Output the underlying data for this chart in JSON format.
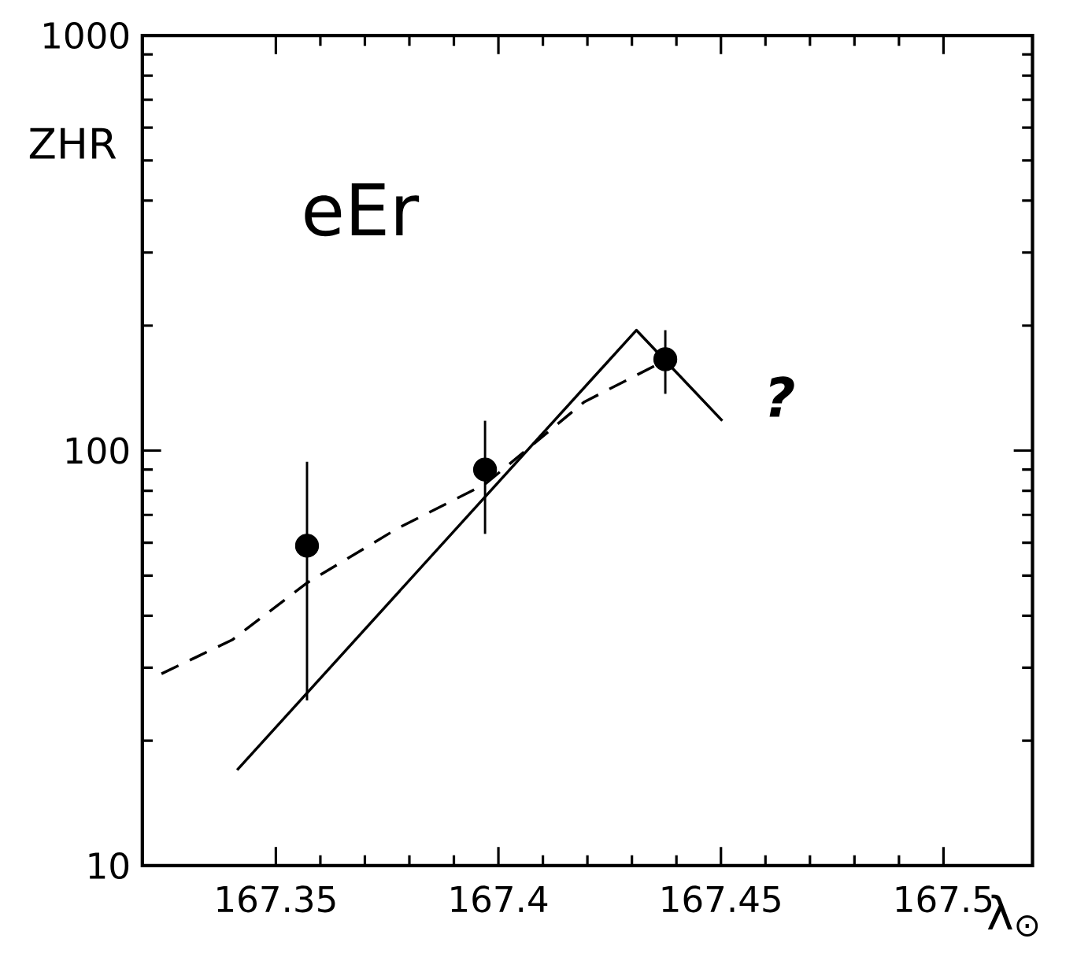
{
  "chart_data": {
    "type": "scatter",
    "xlabel": "λ$_{⊙}$",
    "ylabel": "ZHR",
    "log": "y",
    "grid": false,
    "xlim": [
      167.32,
      167.52
    ],
    "ylim": [
      10,
      1000
    ],
    "xticks": [
      167.35,
      167.4,
      167.45,
      167.5
    ],
    "yticks": [
      10,
      100,
      1000
    ],
    "annotations": [
      "eEr",
      "?"
    ],
    "series": [
      {
        "color": "#000000",
        "marker": "circle",
        "x": [
          167.357,
          167.397,
          167.4375
        ],
        "values": [
          59,
          90,
          166
        ],
        "errors": [
          [
            25,
            94
          ],
          [
            63,
            118
          ],
          [
            137,
            195
          ]
        ]
      },
      {
        "type": "line",
        "color": "#000000",
        "line_style": "solid",
        "marker": "none",
        "x": [
          167.3413,
          167.431,
          167.4503
        ],
        "values": [
          17,
          195,
          118
        ]
      },
      {
        "type": "line",
        "color": "#000000",
        "line_style": "dashed",
        "marker": "none",
        "x": [
          167.3243,
          167.3402,
          167.357,
          167.3774,
          167.397,
          167.4193,
          167.4356
        ],
        "values": [
          29,
          35,
          48,
          65,
          83,
          131,
          161
        ]
      }
    ]
  }
}
